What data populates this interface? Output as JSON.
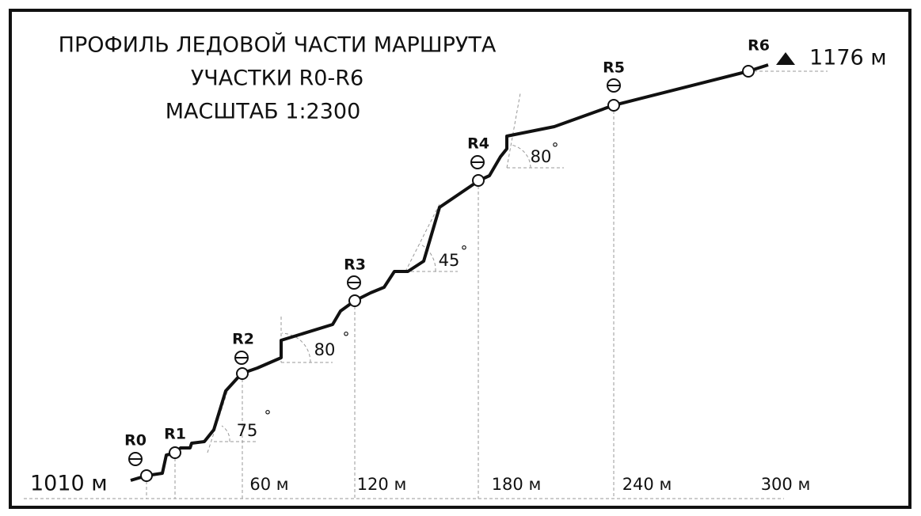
{
  "title": [
    "ПРОФИЛЬ ЛЕДОВОЙ ЧАСТИ МАРШРУТА",
    "УЧАСТКИ R0-R6",
    "МАСШТАБ 1:2300"
  ],
  "stations": [
    "R0",
    "R1",
    "R2",
    "R3",
    "R4",
    "R5",
    "R6"
  ],
  "elevations": {
    "start": "1010 м",
    "finish": "1176 м"
  },
  "distances": [
    "60 м",
    "120 м",
    "180 м",
    "240 м",
    "300 м"
  ],
  "angles": [
    {
      "label": "75",
      "degree": "°"
    },
    {
      "label": "80",
      "degree": "°"
    },
    {
      "label": "45",
      "degree": "°"
    },
    {
      "label": "80",
      "degree": "°"
    }
  ]
}
